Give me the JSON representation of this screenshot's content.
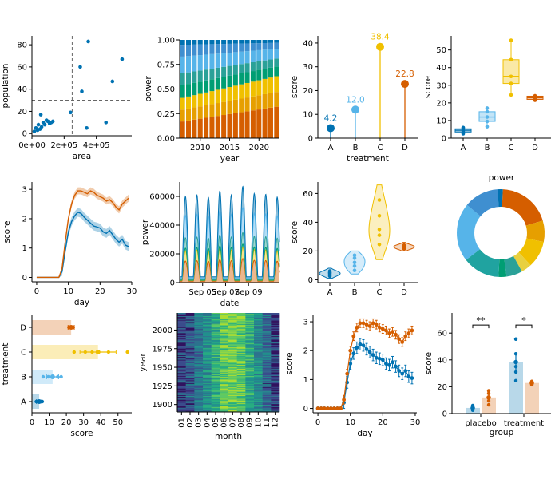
{
  "colors": {
    "blue": "#0072B2",
    "light_blue": "#56B4E9",
    "yellow": "#F0C000",
    "orange": "#D55E00",
    "green": "#009E73",
    "teal": "#2AA198",
    "axis": "#000000"
  },
  "chart_data": [
    {
      "id": "p1",
      "type": "scatter",
      "xlabel": "area",
      "ylabel": "population",
      "xlim": [
        0,
        620000
      ],
      "ylim": [
        -2,
        88
      ],
      "x_ticks": [
        {
          "v": 0,
          "label": "0e+00"
        },
        {
          "v": 200000,
          "label": "2e+05"
        },
        {
          "v": 400000,
          "label": "4e+05"
        }
      ],
      "y_ticks": [
        0,
        20,
        40,
        60,
        80
      ],
      "vline": 250000,
      "hline": 30,
      "x": [
        15000,
        25000,
        35000,
        40000,
        50000,
        55000,
        60000,
        70000,
        80000,
        90000,
        100000,
        110000,
        120000,
        130000,
        240000,
        300000,
        310000,
        340000,
        350000,
        460000,
        500000,
        560000
      ],
      "y": [
        2,
        5,
        3,
        8,
        4,
        17,
        6,
        10,
        8,
        12,
        11,
        9,
        10,
        11,
        19,
        60,
        38,
        5,
        83,
        10,
        47,
        67
      ]
    },
    {
      "id": "p2",
      "type": "area",
      "xlabel": "year",
      "ylabel": "power",
      "xlim": [
        2006.5,
        2023.5
      ],
      "ylim": [
        0,
        1.0
      ],
      "x_ticks": [
        2010,
        2015,
        2020
      ],
      "y_ticks": [
        {
          "v": 0,
          "label": "0.00"
        },
        {
          "v": 0.25,
          "label": "0.25"
        },
        {
          "v": 0.5,
          "label": "0.50"
        },
        {
          "v": 0.75,
          "label": "0.75"
        },
        {
          "v": 1,
          "label": "1.00"
        }
      ],
      "years": [
        2007,
        2008,
        2009,
        2010,
        2011,
        2012,
        2013,
        2014,
        2015,
        2016,
        2017,
        2018,
        2019,
        2020,
        2021,
        2022,
        2023
      ],
      "series": [
        {
          "color": "#D55E00",
          "start": 0.17,
          "end": 0.32
        },
        {
          "color": "#E69F00",
          "start": 0.12,
          "end": 0.15
        },
        {
          "color": "#F0C000",
          "start": 0.12,
          "end": 0.16
        },
        {
          "color": "#009E73",
          "start": 0.13,
          "end": 0.1
        },
        {
          "color": "#2AA198",
          "start": 0.12,
          "end": 0.08
        },
        {
          "color": "#56B4E9",
          "start": 0.17,
          "end": 0.1
        },
        {
          "color": "#3F8FD0",
          "start": 0.12,
          "end": 0.06
        },
        {
          "color": "#0072B2",
          "start": 0.05,
          "end": 0.03
        }
      ]
    },
    {
      "id": "p3",
      "type": "lollipop",
      "xlabel": "treatment",
      "ylabel": "score",
      "ylim": [
        0,
        43
      ],
      "y_ticks": [
        0,
        10,
        20,
        30,
        40
      ],
      "categories": [
        "A",
        "B",
        "C",
        "D"
      ],
      "values": [
        4.2,
        12.0,
        38.4,
        22.8
      ],
      "labels": [
        "4.2",
        "12.0",
        "38.4",
        "22.8"
      ],
      "colors": [
        "#0072B2",
        "#56B4E9",
        "#F0C000",
        "#D55E00"
      ]
    },
    {
      "id": "p4",
      "type": "box",
      "ylabel": "score",
      "ylim": [
        0,
        58
      ],
      "y_ticks": [
        0,
        10,
        20,
        30,
        40,
        50
      ],
      "categories": [
        "A",
        "B",
        "C",
        "D"
      ],
      "colors": [
        "#0072B2",
        "#56B4E9",
        "#F0C000",
        "#D55E00"
      ],
      "stats": [
        {
          "min": 2,
          "q1": 3.5,
          "med": 4.5,
          "q3": 5.3,
          "max": 6.5,
          "points": [
            2.5,
            3.5,
            4.5,
            5.5,
            6.0
          ]
        },
        {
          "min": 6,
          "q1": 9.5,
          "med": 12.0,
          "q3": 15.0,
          "max": 17.5,
          "points": [
            6.5,
            9.5,
            12.0,
            15.0,
            17.0
          ]
        },
        {
          "min": 24,
          "q1": 31.0,
          "med": 35.0,
          "q3": 44.5,
          "max": 55.5,
          "points": [
            24.5,
            31.0,
            35.0,
            44.5,
            55.5
          ]
        },
        {
          "min": 21,
          "q1": 22.0,
          "med": 23.0,
          "q3": 23.8,
          "max": 24.5,
          "points": [
            21.5,
            22.0,
            23.0,
            23.5,
            24.0
          ]
        }
      ]
    },
    {
      "id": "p5",
      "type": "line",
      "xlabel": "day",
      "ylabel": "score",
      "xlim": [
        -1.5,
        30
      ],
      "ylim": [
        -0.15,
        3.25
      ],
      "x_ticks": [
        0,
        10,
        20,
        30
      ],
      "y_ticks": [
        0,
        1,
        2,
        3
      ],
      "series": [
        {
          "color": "#0072B2",
          "y": [
            0,
            0,
            0,
            0,
            0,
            0,
            0,
            0,
            0.2,
            0.9,
            1.55,
            1.9,
            2.1,
            2.22,
            2.18,
            2.05,
            1.95,
            1.85,
            1.75,
            1.72,
            1.68,
            1.55,
            1.5,
            1.6,
            1.45,
            1.3,
            1.2,
            1.3,
            1.1,
            1.05
          ],
          "band": 0.15
        },
        {
          "color": "#D55E00",
          "y": [
            0,
            0,
            0,
            0,
            0,
            0,
            0,
            0,
            0.3,
            1.2,
            2.0,
            2.5,
            2.8,
            2.95,
            2.95,
            2.9,
            2.85,
            2.95,
            2.9,
            2.8,
            2.75,
            2.7,
            2.6,
            2.65,
            2.55,
            2.4,
            2.3,
            2.5,
            2.6,
            2.7
          ],
          "band": 0.12
        }
      ]
    },
    {
      "id": "p6",
      "type": "area",
      "xlabel": "date",
      "ylabel": "power",
      "ylim": [
        0,
        70000
      ],
      "y_ticks": [
        0,
        20000,
        40000,
        60000
      ],
      "x_tick_labels": [
        "Sep 05",
        "Sep 07",
        "Sep 09"
      ],
      "x_ticks_days": [
        2,
        4,
        6
      ],
      "days": 8.7,
      "peak_totals": [
        60000,
        61000,
        59500,
        64000,
        61000,
        67000,
        62000,
        61500,
        59500
      ],
      "series_colors": [
        "#D55E00",
        "#F0C000",
        "#009E73",
        "#2AA198",
        "#56B4E9",
        "#0072B2"
      ]
    },
    {
      "id": "p7",
      "type": "violin",
      "ylabel": "score",
      "ylim": [
        -2,
        68
      ],
      "y_ticks": [
        0,
        20,
        40,
        60
      ],
      "categories": [
        "A",
        "B",
        "C",
        "D"
      ],
      "colors": [
        "#0072B2",
        "#56B4E9",
        "#F0C000",
        "#D55E00"
      ],
      "points": [
        [
          2.5,
          3.5,
          4.5,
          5.0,
          6.0
        ],
        [
          6.5,
          9.5,
          12.0,
          15.0,
          17.0
        ],
        [
          24.5,
          31.0,
          35.0,
          44.5,
          55.5
        ],
        [
          21.5,
          22.0,
          23.0,
          23.5,
          24.0
        ]
      ],
      "ranges": [
        [
          1,
          8
        ],
        [
          4,
          20
        ],
        [
          14,
          66
        ],
        [
          20,
          26
        ]
      ]
    },
    {
      "id": "p8",
      "type": "pie",
      "title": "power",
      "values": [
        20,
        8,
        10,
        4,
        6,
        3,
        14,
        22,
        13,
        2
      ],
      "colors": [
        "#D55E00",
        "#E69F00",
        "#F0C000",
        "#E8D040",
        "#2AA198",
        "#009E73",
        "#20A3A0",
        "#56B4E9",
        "#3F8FD0",
        "#0072B2"
      ]
    },
    {
      "id": "p9",
      "type": "bar",
      "xlabel": "score",
      "ylabel": "treatment",
      "xlim": [
        0,
        58
      ],
      "x_ticks": [
        0,
        10,
        20,
        30,
        40,
        50
      ],
      "categories": [
        "A",
        "B",
        "C",
        "D"
      ],
      "values": [
        4.2,
        12.0,
        38.4,
        22.8
      ],
      "errors": [
        1.5,
        3.5,
        10.5,
        1.8
      ],
      "colors": [
        "#0072B2",
        "#56B4E9",
        "#F0C000",
        "#D55E00"
      ],
      "points": [
        [
          2.5,
          3.5,
          4.5,
          5.0,
          6.0
        ],
        [
          6.5,
          9.5,
          12.0,
          15.0,
          17.0
        ],
        [
          24.5,
          31.0,
          35.0,
          44.5,
          55.5
        ],
        [
          21.5,
          22.0,
          23.0,
          23.5,
          24.0
        ]
      ]
    },
    {
      "id": "p10",
      "type": "heatmap",
      "xlabel": "month",
      "ylabel": "year",
      "months": [
        "01",
        "02",
        "03",
        "04",
        "05",
        "06",
        "07",
        "08",
        "09",
        "10",
        "11",
        "12"
      ],
      "year_range": [
        1890,
        2023
      ],
      "y_ticks": [
        1900,
        1925,
        1950,
        1975,
        2000
      ],
      "palette": [
        "#31125E",
        "#3B4C8C",
        "#2C728E",
        "#21908D",
        "#27AD81",
        "#5CC863",
        "#AADC32"
      ]
    },
    {
      "id": "p11",
      "type": "line",
      "xlabel": "day",
      "ylabel": "score",
      "xlim": [
        -1.5,
        30.5
      ],
      "ylim": [
        -0.15,
        3.25
      ],
      "x_ticks": [
        0,
        10,
        20,
        30
      ],
      "y_ticks": [
        0,
        1,
        2,
        3
      ],
      "series": [
        {
          "color": "#0072B2",
          "y": [
            0,
            0,
            0,
            0,
            0,
            0,
            0,
            0,
            0.2,
            0.9,
            1.55,
            1.9,
            2.1,
            2.22,
            2.18,
            2.05,
            1.95,
            1.85,
            1.75,
            1.72,
            1.68,
            1.55,
            1.5,
            1.6,
            1.45,
            1.3,
            1.2,
            1.3,
            1.1,
            1.05
          ],
          "err": 0.2
        },
        {
          "color": "#D55E00",
          "y": [
            0,
            0,
            0,
            0,
            0,
            0,
            0,
            0,
            0.3,
            1.2,
            2.0,
            2.5,
            2.8,
            2.95,
            2.95,
            2.9,
            2.85,
            2.95,
            2.9,
            2.8,
            2.75,
            2.7,
            2.6,
            2.65,
            2.55,
            2.4,
            2.3,
            2.5,
            2.6,
            2.7
          ],
          "err": 0.15
        }
      ]
    },
    {
      "id": "p12",
      "type": "bar",
      "xlabel": "group",
      "ylabel": "score",
      "ylim": [
        0,
        75
      ],
      "y_ticks": [
        0,
        20,
        40,
        60
      ],
      "groups": [
        "placebo",
        "treatment"
      ],
      "series": [
        {
          "color": "#0072B2",
          "values": [
            4.2,
            38.4
          ],
          "errors": [
            1.5,
            6.0
          ],
          "points": [
            [
              2.5,
              3.5,
              4.5,
              5.0,
              6.0
            ],
            [
              24.5,
              31.0,
              35.0,
              44.5,
              55.5
            ]
          ]
        },
        {
          "color": "#D55E00",
          "values": [
            12.0,
            22.8
          ],
          "errors": [
            1.8,
            0.8
          ],
          "points": [
            [
              6.5,
              9.5,
              12.0,
              15.0,
              17.0
            ],
            [
              21.5,
              22.0,
              23.0,
              23.5,
              24.0
            ]
          ]
        }
      ],
      "significance": [
        "**",
        "*"
      ]
    }
  ]
}
